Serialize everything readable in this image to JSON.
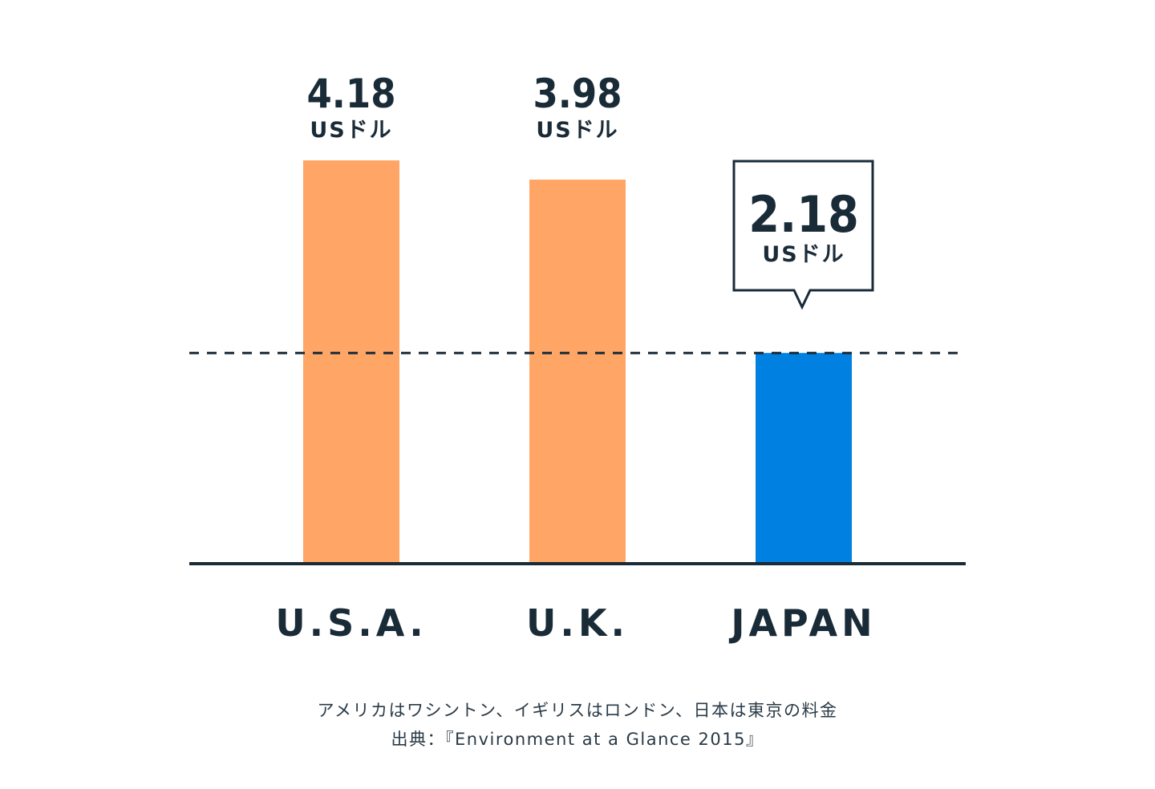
{
  "chart_data": {
    "type": "bar",
    "categories": [
      "U.S.A.",
      "U.K.",
      "JAPAN"
    ],
    "values": [
      4.18,
      3.98,
      2.18
    ],
    "value_labels": [
      "4.18",
      "3.98",
      "2.18"
    ],
    "unit": "USドル",
    "highlight_index": 2,
    "reference_line": 2.18,
    "ylim": [
      0,
      4.18
    ],
    "title": "",
    "xlabel": "",
    "ylabel": "",
    "grid": false,
    "colors": {
      "default_bar": "#ffa566",
      "highlight_bar": "#0080e0",
      "text": "#1a2b38",
      "axis": "#1a2b38"
    }
  },
  "notes": {
    "line1": "アメリカはワシントン、イギリスはロンドン、日本は東京の料金",
    "line2": "出典：『Environment at a Glance 2015』"
  }
}
